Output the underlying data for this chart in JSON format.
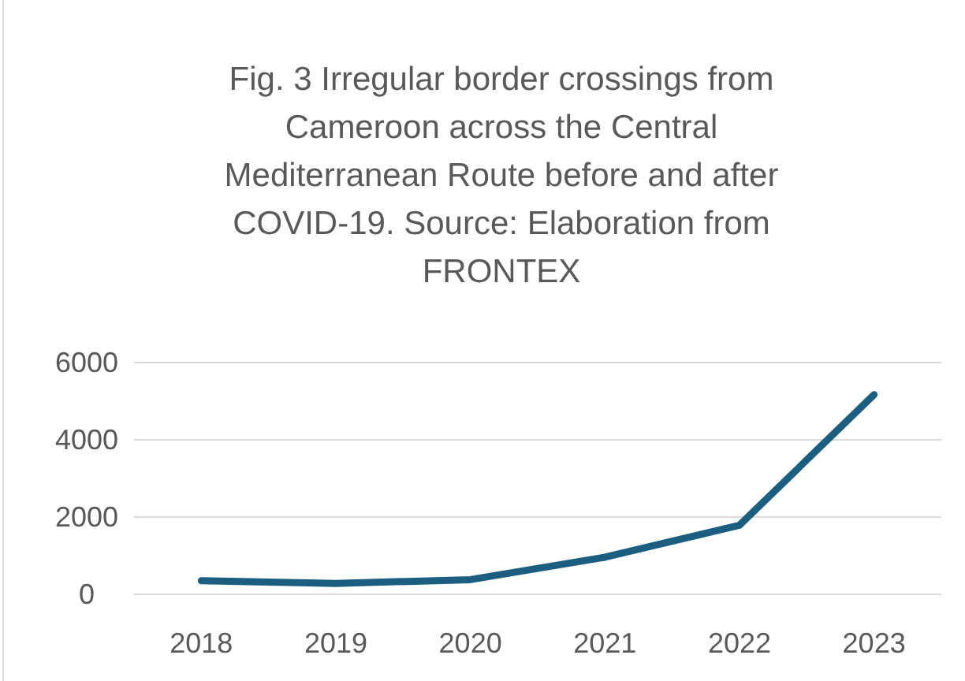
{
  "chart_data": {
    "type": "line",
    "title": "Fig. 3 Irregular border crossings from Cameroon across the Central Mediterranean Route before and after COVID-19. Source: Elaboration from FRONTEX",
    "categories": [
      "2018",
      "2019",
      "2020",
      "2021",
      "2022",
      "2023"
    ],
    "series": [
      {
        "color": "#1b5e80",
        "values": [
          350,
          280,
          380,
          960,
          1790,
          5170
        ]
      }
    ],
    "ylim": [
      0,
      6000
    ],
    "yticks": [
      0,
      2000,
      4000,
      6000
    ],
    "grid": "y",
    "marker": "none",
    "line_style": "solid"
  }
}
